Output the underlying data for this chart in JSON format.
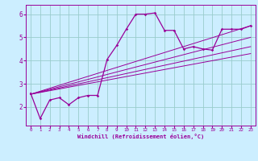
{
  "xlabel": "Windchill (Refroidissement éolien,°C)",
  "bg_color": "#cceeff",
  "line_color": "#990099",
  "grid_color": "#99cccc",
  "xlim": [
    -0.5,
    23.5
  ],
  "ylim": [
    1.2,
    6.4
  ],
  "yticks": [
    2,
    3,
    4,
    5,
    6
  ],
  "xticks": [
    0,
    1,
    2,
    3,
    4,
    5,
    6,
    7,
    8,
    9,
    10,
    11,
    12,
    13,
    14,
    15,
    16,
    17,
    18,
    19,
    20,
    21,
    22,
    23
  ],
  "xtick_labels": [
    "0",
    "1",
    "2",
    "3",
    "4",
    "5",
    "6",
    "7",
    "8",
    "9",
    "10",
    "11",
    "12",
    "13",
    "14",
    "15",
    "16",
    "17",
    "18",
    "19",
    "20",
    "21",
    "22",
    "23"
  ],
  "series": [
    [
      0,
      2.6
    ],
    [
      1,
      1.5
    ],
    [
      2,
      2.3
    ],
    [
      3,
      2.4
    ],
    [
      4,
      2.1
    ],
    [
      5,
      2.4
    ],
    [
      6,
      2.5
    ],
    [
      7,
      2.5
    ],
    [
      8,
      4.05
    ],
    [
      9,
      4.65
    ],
    [
      10,
      5.35
    ],
    [
      11,
      6.0
    ],
    [
      12,
      6.0
    ],
    [
      13,
      6.05
    ],
    [
      14,
      5.3
    ],
    [
      15,
      5.3
    ],
    [
      16,
      4.5
    ],
    [
      17,
      4.6
    ],
    [
      18,
      4.5
    ],
    [
      19,
      4.45
    ],
    [
      20,
      5.35
    ],
    [
      21,
      5.35
    ],
    [
      22,
      5.35
    ],
    [
      23,
      5.5
    ]
  ],
  "linear_lines": [
    {
      "x": [
        0,
        23
      ],
      "y": [
        2.55,
        5.5
      ]
    },
    {
      "x": [
        0,
        23
      ],
      "y": [
        2.55,
        5.0
      ]
    },
    {
      "x": [
        0,
        23
      ],
      "y": [
        2.55,
        4.6
      ]
    },
    {
      "x": [
        0,
        23
      ],
      "y": [
        2.55,
        4.3
      ]
    }
  ]
}
